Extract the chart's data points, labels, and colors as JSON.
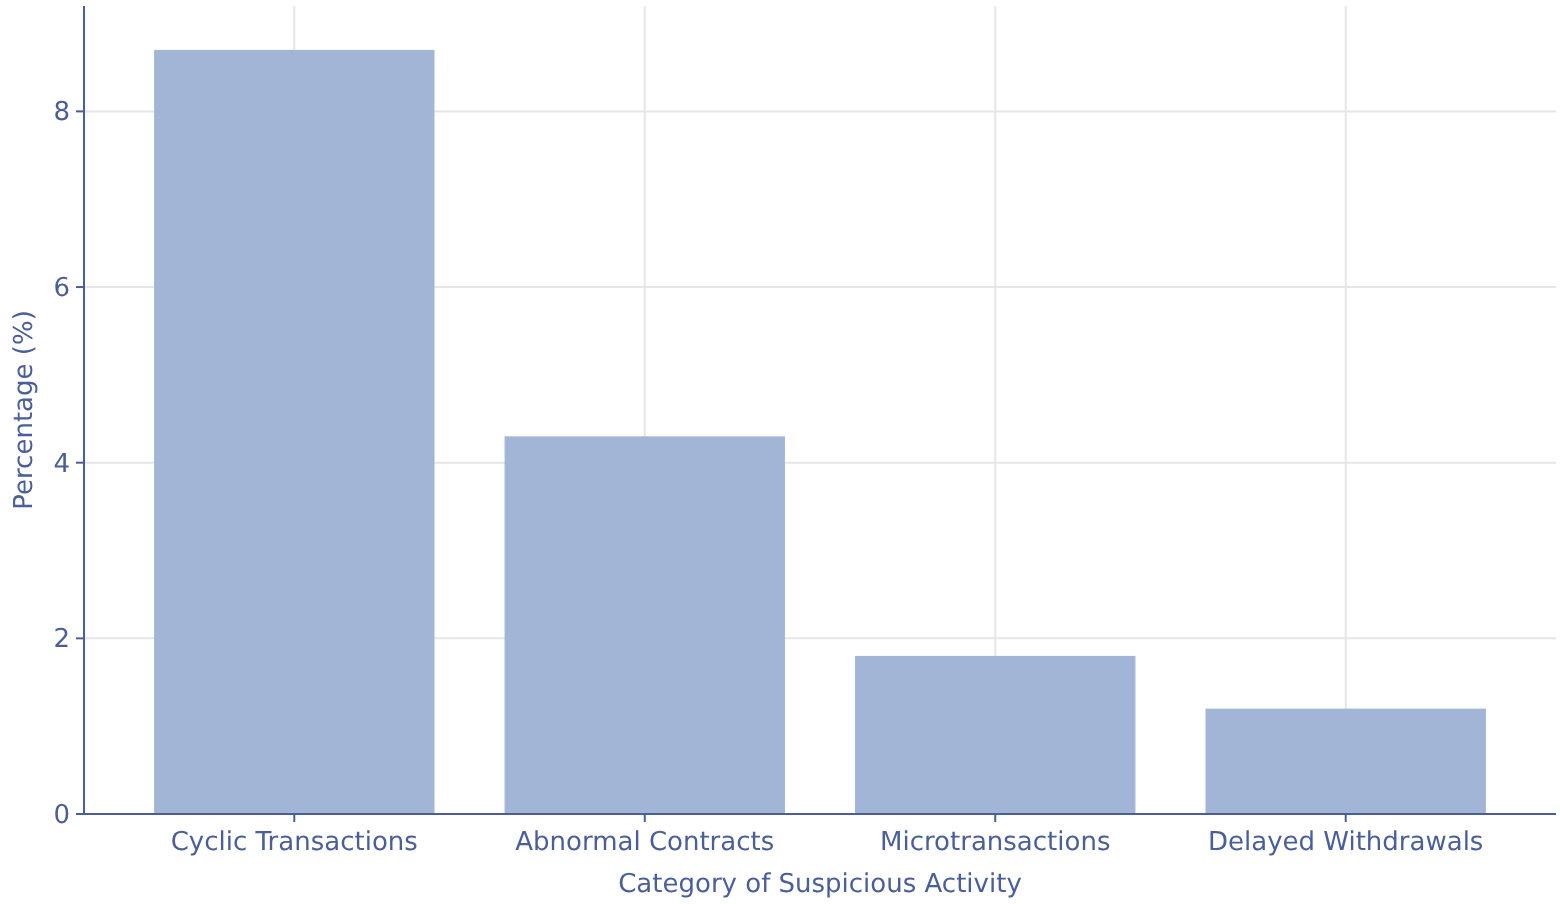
{
  "chart_data": {
    "type": "bar",
    "xlabel": "Category of Suspicious Activity",
    "ylabel": "Percentage (%)",
    "categories": [
      "Cyclic Transactions",
      "Abnormal Contracts",
      "Microtransactions",
      "Delayed Withdrawals"
    ],
    "values": [
      8.7,
      4.3,
      1.8,
      1.2
    ],
    "color": "#a3b5d6",
    "ylim": [
      0,
      9.2
    ],
    "yticks": [
      0,
      2,
      4,
      6,
      8
    ],
    "grid": true
  }
}
